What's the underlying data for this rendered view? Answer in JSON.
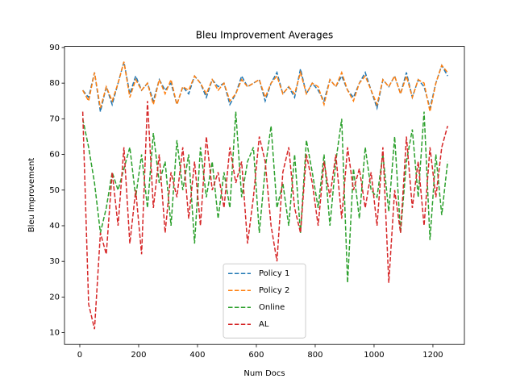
{
  "chart_data": {
    "type": "line",
    "title": "Bleu Improvement Averages",
    "xlabel": "Num Docs",
    "ylabel": "Bleu Improvement",
    "x": [
      10,
      30,
      50,
      70,
      90,
      110,
      130,
      150,
      170,
      190,
      210,
      230,
      250,
      270,
      290,
      310,
      330,
      350,
      370,
      390,
      410,
      430,
      450,
      470,
      490,
      510,
      530,
      550,
      570,
      590,
      610,
      630,
      650,
      670,
      690,
      710,
      730,
      750,
      770,
      790,
      810,
      830,
      850,
      870,
      890,
      910,
      930,
      950,
      970,
      990,
      1010,
      1030,
      1050,
      1070,
      1090,
      1110,
      1130,
      1150,
      1170,
      1190,
      1210,
      1230,
      1250
    ],
    "series": [
      {
        "name": "Policy 1",
        "color": "#1f77b4",
        "values": [
          78,
          76,
          83,
          72,
          79,
          74,
          80,
          86,
          77,
          82,
          78,
          80,
          75,
          81,
          78,
          80,
          74,
          79,
          77,
          82,
          80,
          76,
          81,
          79,
          80,
          74,
          77,
          82,
          79,
          80,
          81,
          75,
          80,
          83,
          77,
          79,
          76,
          84,
          77,
          80,
          78,
          75,
          81,
          79,
          82,
          78,
          76,
          80,
          83,
          78,
          73,
          81,
          79,
          82,
          77,
          83,
          76,
          81,
          79,
          73,
          80,
          85,
          82
        ]
      },
      {
        "name": "Policy 2",
        "color": "#ff7f0e",
        "values": [
          78,
          75,
          83,
          73,
          79,
          75,
          80,
          86,
          76,
          81,
          78,
          80,
          74,
          81,
          77,
          81,
          74,
          79,
          78,
          82,
          80,
          77,
          81,
          78,
          80,
          75,
          77,
          81,
          79,
          80,
          81,
          76,
          80,
          82,
          77,
          79,
          77,
          83,
          77,
          80,
          79,
          74,
          81,
          79,
          83,
          78,
          75,
          80,
          82,
          78,
          74,
          81,
          79,
          82,
          77,
          82,
          76,
          81,
          80,
          72,
          80,
          85,
          83
        ]
      },
      {
        "name": "Online",
        "color": "#2ca02c",
        "values": [
          70,
          62,
          52,
          38,
          45,
          55,
          50,
          56,
          62,
          48,
          60,
          45,
          66,
          52,
          58,
          40,
          64,
          50,
          60,
          35,
          62,
          48,
          58,
          42,
          55,
          45,
          72,
          48,
          58,
          62,
          38,
          56,
          68,
          45,
          52,
          40,
          60,
          38,
          64,
          55,
          45,
          60,
          40,
          58,
          70,
          24,
          56,
          42,
          62,
          50,
          48,
          60,
          44,
          65,
          38,
          58,
          67,
          48,
          72,
          36,
          60,
          43,
          58
        ]
      },
      {
        "name": "AL",
        "color": "#d62728",
        "values": [
          72,
          18,
          11,
          38,
          32,
          55,
          40,
          62,
          35,
          50,
          32,
          75,
          45,
          60,
          38,
          55,
          48,
          62,
          42,
          58,
          40,
          65,
          50,
          55,
          45,
          62,
          52,
          58,
          35,
          48,
          65,
          58,
          40,
          30,
          55,
          62,
          45,
          38,
          60,
          52,
          40,
          58,
          48,
          60,
          42,
          62,
          50,
          56,
          45,
          55,
          40,
          62,
          24,
          50,
          38,
          65,
          45,
          58,
          40,
          62,
          48,
          62,
          68
        ]
      }
    ],
    "xlim": [
      -52,
      1307
    ],
    "ylim": [
      6.7,
      90.3
    ],
    "xticks": [
      0,
      200,
      400,
      600,
      800,
      1000,
      1200
    ],
    "yticks": [
      10,
      20,
      30,
      40,
      50,
      60,
      70,
      80,
      90
    ],
    "legend": "lower center"
  }
}
